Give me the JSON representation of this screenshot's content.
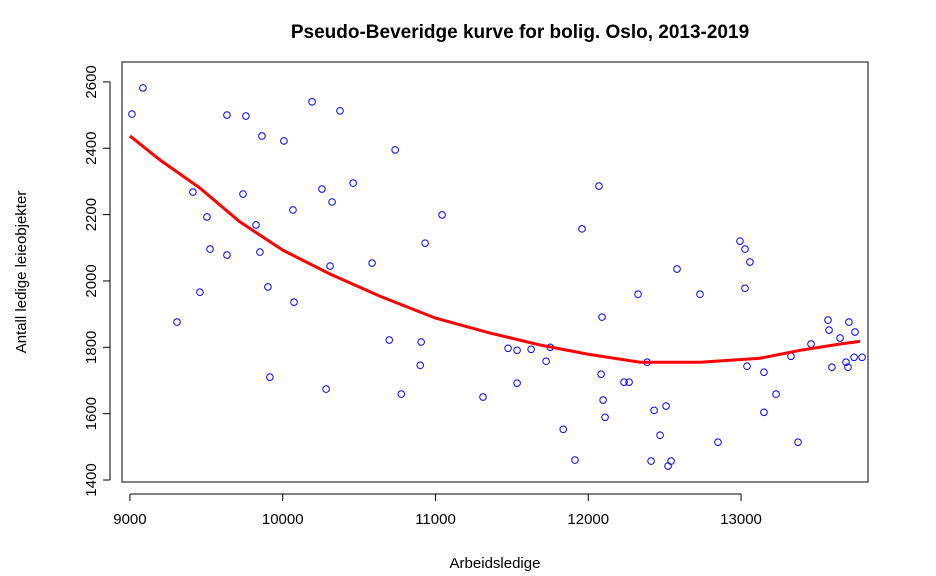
{
  "chart_data": {
    "type": "scatter",
    "title": "Pseudo-Beveridge kurve for bolig. Oslo, 2013-2019",
    "xlabel": "Arbeidsledige",
    "ylabel": "Antall ledige leieobjekter",
    "color": "#0000ff",
    "x": [
      9013,
      9085,
      9308,
      9412,
      9458,
      9504,
      9524,
      9635,
      9635,
      9740,
      9759,
      9825,
      9851,
      9864,
      9903,
      9916,
      10008,
      10067,
      10074,
      10192,
      10257,
      10284,
      10310,
      10323,
      10375,
      10461,
      10585,
      10697,
      10736,
      10776,
      10900,
      10906,
      10932,
      11043,
      11311,
      11475,
      11534,
      11534,
      11626,
      11724,
      11751,
      11836,
      11913,
      11959,
      12070,
      12084,
      12090,
      12097,
      12110,
      12234,
      12267,
      12326,
      12385,
      12411,
      12431,
      12470,
      12509,
      12522,
      12542,
      12581,
      12731,
      12849,
      12993,
      13026,
      13026,
      13039,
      13058,
      13150,
      13150,
      13229,
      13327,
      13373,
      13458,
      13569,
      13576,
      13595,
      13648,
      13706,
      13700,
      13746,
      13687,
      13740,
      13792
    ],
    "values": [
      2503,
      2582,
      1876,
      2268,
      1966,
      2193,
      2096,
      2078,
      2500,
      2262,
      2497,
      2169,
      2087,
      2437,
      1982,
      1710,
      2422,
      2214,
      1936,
      2540,
      2277,
      1674,
      2045,
      2238,
      2513,
      2295,
      2054,
      1822,
      2395,
      1659,
      1746,
      1816,
      2114,
      2199,
      1650,
      1797,
      1791,
      1692,
      1794,
      1758,
      1800,
      1553,
      1460,
      2157,
      2286,
      1719,
      1891,
      1641,
      1589,
      1695,
      1695,
      1960,
      1755,
      1457,
      1610,
      1535,
      1623,
      1442,
      1457,
      2036,
      1960,
      1514,
      2120,
      2096,
      1978,
      1743,
      2057,
      1725,
      1604,
      1659,
      1773,
      1514,
      1810,
      1882,
      1852,
      1740,
      1828,
      1876,
      1740,
      1846,
      1755,
      1770,
      1770
    ],
    "fit": {
      "color": "#ff0000",
      "x": [
        9000,
        9196,
        9458,
        9720,
        10000,
        10309,
        10637,
        11000,
        11357,
        11684,
        12000,
        12339,
        12731,
        13124,
        13386,
        13648,
        13779
      ],
      "values": [
        2437,
        2365,
        2280,
        2178,
        2093,
        2021,
        1954,
        1888,
        1843,
        1807,
        1779,
        1755,
        1755,
        1767,
        1791,
        1810,
        1818
      ]
    },
    "xlim": [
      8948,
      13831
    ],
    "ylim": [
      1394,
      2660
    ],
    "xticks": [
      9000,
      10000,
      11000,
      12000,
      13000
    ],
    "yticks": [
      1400,
      1600,
      1800,
      2000,
      2200,
      2400,
      2600
    ]
  }
}
